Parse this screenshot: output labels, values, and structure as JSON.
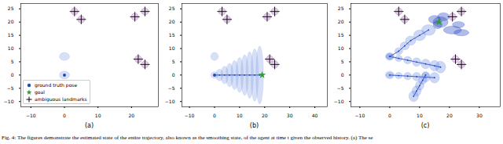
{
  "caption": "Fig. 4: The figures demonstrate the estimated state of the entire trajectory, also known as the smoothing state, of the agent at time t given the observed history. (a) The se",
  "chart_data": [
    {
      "type": "scatter",
      "title": "(a)",
      "xlim": [
        -13,
        28
      ],
      "ylim": [
        -12,
        27
      ],
      "xticks": [
        -10,
        0,
        10,
        20
      ],
      "yticks": [
        -10,
        -5,
        0,
        5,
        10,
        15,
        20,
        25
      ],
      "legend": "lower left",
      "series": [
        {
          "type": "ellipse",
          "color": "#8da5e8",
          "ellipses": [
            [
              0,
              0,
              1.5,
              1.5
            ],
            [
              0,
              7,
              1.5,
              1.5
            ]
          ]
        },
        {
          "name": "ground truth pose",
          "color": "#1f4fa8",
          "marker": "circle",
          "x": [
            0
          ],
          "y": [
            0
          ]
        },
        {
          "name": "goal",
          "color": "#2ca02c",
          "marker": "star",
          "x": [],
          "y": []
        },
        {
          "name": "ambiguous landmarks",
          "color": "#000000",
          "marker": "plus",
          "x": [
            3,
            5,
            21,
            24,
            22,
            24
          ],
          "y": [
            24,
            21,
            22,
            24,
            6,
            4
          ]
        }
      ]
    },
    {
      "type": "scatter",
      "title": "(b)",
      "xlim": [
        -13,
        45
      ],
      "ylim": [
        -12,
        27
      ],
      "xticks": [
        -10,
        0,
        10,
        20,
        30,
        40
      ],
      "yticks": [
        -10,
        -5,
        0,
        5,
        10,
        15,
        20,
        25
      ],
      "series": [
        {
          "type": "ellipse",
          "color": "#8da5e8",
          "ellipses": [
            [
              0,
              7,
              1.5,
              1.5
            ]
          ]
        },
        {
          "type": "ellipse",
          "color": "#8da5e8",
          "line_style": "solid",
          "ellipses": [
            [
              0,
              0,
              1.5,
              1.2
            ],
            [
              2,
              0,
              1.5,
              2.2
            ],
            [
              4,
              0,
              1.5,
              3.3
            ],
            [
              6,
              0,
              1.5,
              4.4
            ],
            [
              8,
              0,
              1.5,
              5.5
            ],
            [
              10,
              0,
              1.5,
              6.6
            ],
            [
              12,
              0,
              1.5,
              7.7
            ],
            [
              14,
              0,
              1.5,
              8.8
            ],
            [
              16,
              0,
              1.5,
              9.9
            ],
            [
              18,
              0,
              1.5,
              11
            ]
          ]
        },
        {
          "color": "#1f4fa8",
          "marker": "circle",
          "x": [
            0
          ],
          "y": [
            0
          ]
        },
        {
          "color": "#2ca02c",
          "marker": "star",
          "x": [
            19
          ],
          "y": [
            0
          ]
        },
        {
          "color": "#000000",
          "marker": "plus",
          "x": [
            3,
            5,
            21,
            24,
            22,
            24
          ],
          "y": [
            24,
            21,
            22,
            24,
            6,
            4
          ]
        }
      ]
    },
    {
      "type": "scatter",
      "title": "(c)",
      "xlim": [
        -13,
        37
      ],
      "ylim": [
        -12,
        27
      ],
      "xticks": [
        -10,
        0,
        10,
        20,
        30
      ],
      "yticks": [
        -10,
        -5,
        0,
        5,
        10,
        15,
        20,
        25
      ],
      "series": [
        {
          "type": "ellipse",
          "color": "#8da5e8",
          "ellipses": [
            [
              0,
              7,
              1.5,
              1.5
            ],
            [
              0,
              0,
              1.5,
              1.5
            ]
          ]
        },
        {
          "type": "ellipse",
          "color": "#6d8ee0",
          "line_style": "solid",
          "ellipses": [
            [
              0,
              7,
              1.2,
              1
            ],
            [
              3,
              6.3,
              1.2,
              1.2
            ],
            [
              6,
              5.6,
              1.3,
              1.4
            ],
            [
              9,
              4.9,
              1.4,
              1.6
            ],
            [
              12,
              4.2,
              1.5,
              1.8
            ],
            [
              15,
              3.5,
              1.6,
              2
            ],
            [
              17,
              3,
              1.7,
              2.2
            ]
          ]
        },
        {
          "type": "ellipse",
          "color": "#6d8ee0",
          "line_style": "solid",
          "ellipses": [
            [
              0,
              0,
              1.2,
              1
            ],
            [
              3,
              -0.2,
              1.2,
              1.2
            ],
            [
              6,
              -0.4,
              1.3,
              1.4
            ],
            [
              9,
              -0.6,
              1.4,
              1.6
            ],
            [
              12,
              -0.8,
              1.5,
              1.8
            ],
            [
              15,
              -1,
              1.6,
              2
            ]
          ]
        },
        {
          "type": "ellipse",
          "color": "#6d8ee0",
          "line_style": "solid",
          "ellipses": [
            [
              0,
              7,
              1.2,
              1.2
            ],
            [
              3,
              9,
              1.3,
              1.3
            ],
            [
              5,
              11,
              1.5,
              1.5
            ],
            [
              7,
              13,
              1.7,
              1.7
            ],
            [
              10,
              15,
              2,
              2
            ],
            [
              13,
              17,
              2.3,
              2
            ]
          ]
        },
        {
          "type": "ellipse",
          "color": "#6d8ee0",
          "line_style": "solid",
          "ellipses": [
            [
              12,
              0,
              1.2,
              1.3
            ],
            [
              11,
              -2,
              1.3,
              1.5
            ],
            [
              10,
              -4,
              1.4,
              1.7
            ],
            [
              9,
              -6,
              1.5,
              1.9
            ],
            [
              8,
              -8,
              1.6,
              2
            ]
          ]
        },
        {
          "type": "ellipse",
          "color": "#1f3fbf",
          "ellipses": [
            [
              15,
              21,
              2,
              1.5
            ],
            [
              17,
              20,
              2.5,
              2
            ],
            [
              18,
              22,
              2,
              1.5
            ],
            [
              16,
              19,
              1.5,
              1.5
            ],
            [
              21,
              17,
              3,
              1.5
            ],
            [
              24,
              16,
              2.5,
              1.2
            ],
            [
              23,
              19,
              2,
              1.2
            ]
          ]
        },
        {
          "color": "#2ca02c",
          "marker": "star",
          "x": [
            16.5
          ],
          "y": [
            20
          ]
        },
        {
          "color": "#000000",
          "marker": "plus",
          "x": [
            3,
            5,
            21,
            24,
            22,
            24
          ],
          "y": [
            24,
            21,
            22,
            24,
            6,
            4
          ]
        }
      ]
    }
  ]
}
